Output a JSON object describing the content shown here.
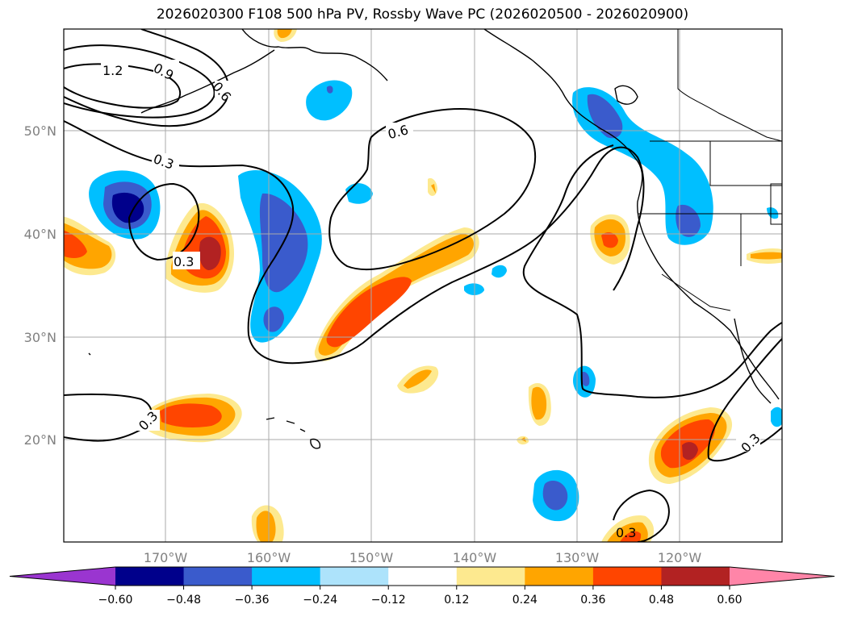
{
  "title": "2026020300 F108 500 hPa PV, Rossby Wave PC (2026020500 - 2026020900)",
  "map": {
    "lon_labels": [
      "170°W",
      "160°W",
      "150°W",
      "140°W",
      "130°W",
      "120°W"
    ],
    "lat_labels": [
      "50°N",
      "40°N",
      "30°N",
      "20°N"
    ],
    "contour_labels": [
      "1.2",
      "0.9",
      "0.6",
      "0.6",
      "0.3",
      "0.3",
      "0.3",
      "0.3",
      "0.3"
    ]
  },
  "colorbar": {
    "ticks": [
      "−0.60",
      "−0.48",
      "−0.36",
      "−0.24",
      "−0.12",
      "0.12",
      "0.24",
      "0.36",
      "0.48",
      "0.60"
    ],
    "colors": [
      "#9a35d0",
      "#00008b",
      "#3a5bcc",
      "#00bfff",
      "#ade3fb",
      "#ffffff",
      "#fde98f",
      "#ffa500",
      "#ff4500",
      "#b22222",
      "#ff85a8"
    ]
  }
}
